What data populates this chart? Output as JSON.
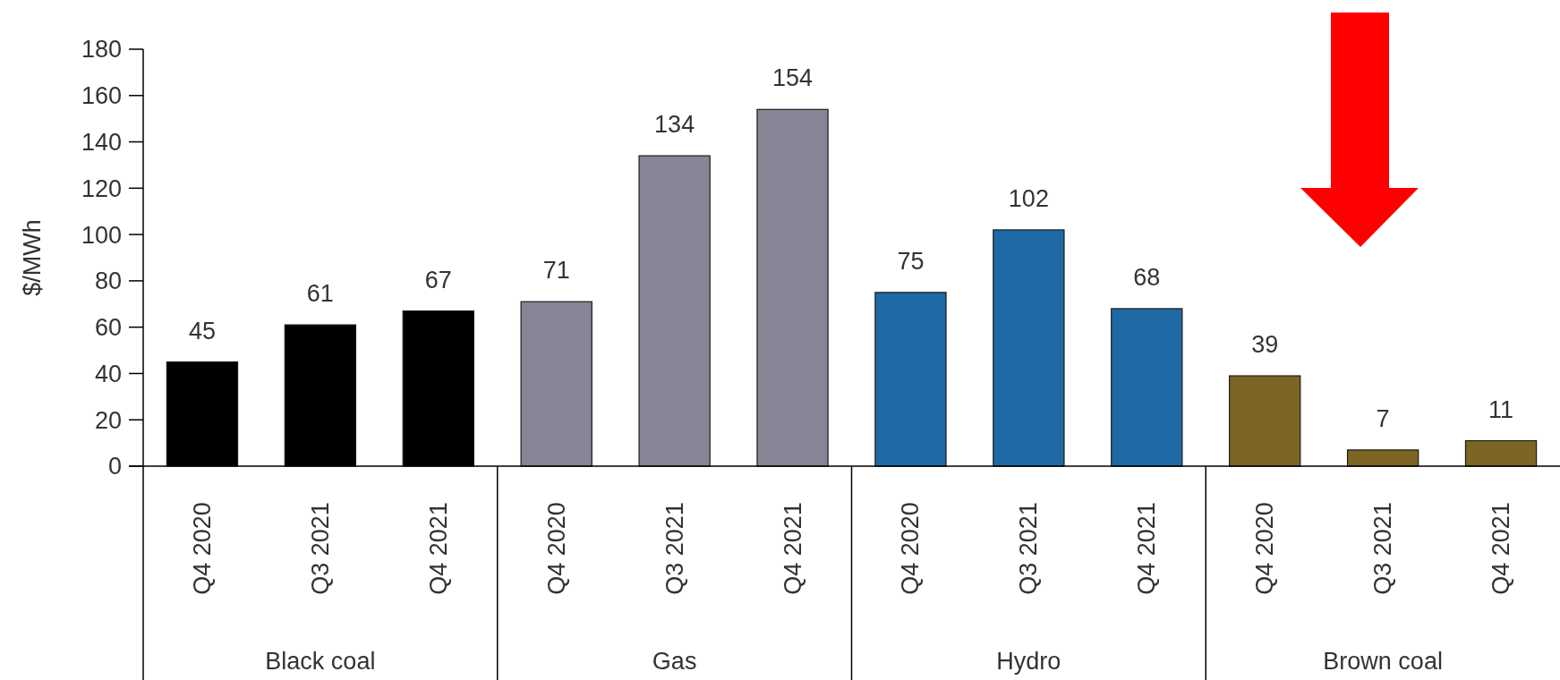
{
  "chart_data": {
    "type": "bar",
    "ylabel": "$/MWh",
    "categories": [
      "Q4 2020",
      "Q3 2021",
      "Q4 2021",
      "Q4 2020",
      "Q3 2021",
      "Q4 2021",
      "Q4 2020",
      "Q3 2021",
      "Q4 2021",
      "Q4 2020",
      "Q3 2021",
      "Q4 2021"
    ],
    "values": [
      45,
      61,
      67,
      71,
      134,
      154,
      75,
      102,
      68,
      39,
      7,
      11
    ],
    "colors": [
      "#000000",
      "#000000",
      "#000000",
      "#858595",
      "#858595",
      "#858595",
      "#1f69a4",
      "#1f69a4",
      "#1f69a4",
      "#7d6523",
      "#7d6523",
      "#7d6523"
    ],
    "annotations": [
      "Black coal",
      "Gas",
      "Hydro",
      "Brown coal"
    ],
    "ylim": [
      0,
      180
    ],
    "yticks": [
      0,
      20,
      40,
      60,
      80,
      100,
      120,
      140,
      160,
      180
    ],
    "data_labels": true
  }
}
